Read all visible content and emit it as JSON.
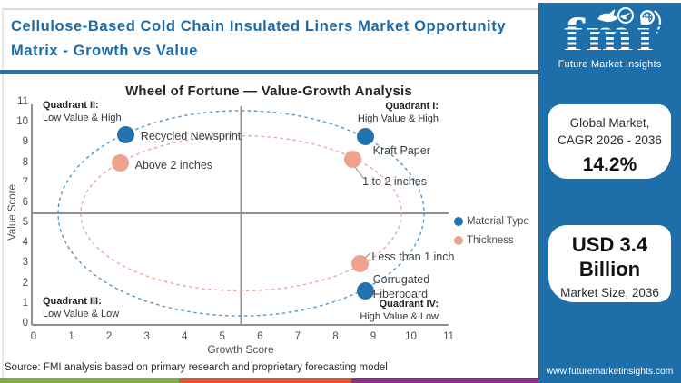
{
  "header": {
    "title": "Cellulose-Based Cold Chain Insulated Liners Market Opportunity Matrix - Growth vs Value"
  },
  "brand": {
    "logo_text": "fmi",
    "logo_tagline": "Future Market Insights",
    "website": "www.futuremarketinsights.com",
    "panel_color": "#1e6fa9"
  },
  "stats": {
    "cagr_box": {
      "line1": "Global Market,",
      "line2": "CAGR 2026 - 2036",
      "value": "14.2%"
    },
    "size_box": {
      "line1": "USD 3.4",
      "line2": "Billion",
      "caption": "Market Size, 2036"
    }
  },
  "chart_data": {
    "type": "scatter",
    "title": "Wheel of Fortune — Value-Growth Analysis",
    "xlabel": "Growth Score",
    "ylabel": "Value Score",
    "xlim": [
      0,
      11
    ],
    "ylim": [
      0,
      11
    ],
    "xticks": [
      0,
      1,
      2,
      3,
      4,
      5,
      6,
      7,
      8,
      9,
      10,
      11
    ],
    "yticks": [
      0,
      1,
      2,
      3,
      4,
      5,
      6,
      7,
      8,
      9,
      10,
      11
    ],
    "quadrant_divider": {
      "x": 5.5,
      "y": 5.5
    },
    "quadrants": [
      {
        "name": "Quadrant I:",
        "desc": "High Value & High",
        "position": "top-right"
      },
      {
        "name": "Quadrant II:",
        "desc": "Low Value & High",
        "position": "top-left"
      },
      {
        "name": "Quadrant III:",
        "desc": "Low Value & Low",
        "position": "bottom-left"
      },
      {
        "name": "Quadrant IV:",
        "desc": "High Value & Low",
        "position": "bottom-right"
      }
    ],
    "series": [
      {
        "name": "Material Type",
        "color": "#2273ae",
        "points": [
          {
            "label": "Recycled Newsprint",
            "x": 2.45,
            "y": 9.4
          },
          {
            "label": "Kraft Paper",
            "x": 8.8,
            "y": 9.3
          },
          {
            "label": "Corrugated Fiberboard",
            "x": 8.8,
            "y": 1.65
          }
        ]
      },
      {
        "name": "Thickness",
        "color": "#eda28b",
        "points": [
          {
            "label": "Above 2 inches",
            "x": 2.3,
            "y": 8.0
          },
          {
            "label": "1 to 2 inches",
            "x": 8.45,
            "y": 8.2
          },
          {
            "label": "Less than 1 inch",
            "x": 8.65,
            "y": 3.0
          }
        ]
      }
    ],
    "rings": [
      {
        "series": "Material Type",
        "cx": 5.5,
        "cy": 5.5,
        "rx": 4.85,
        "ry": 5.1,
        "color": "#4f93c6"
      },
      {
        "series": "Thickness",
        "cx": 5.5,
        "cy": 5.5,
        "rx": 4.25,
        "ry": 3.85,
        "color": "#eaa694"
      }
    ],
    "legend": [
      "Material Type",
      "Thickness"
    ],
    "grid": false
  },
  "footer": {
    "source": "Source: FMI analysis based on primary research and proprietary forecasting model"
  },
  "stripe_colors": [
    "#7dae3e",
    "#e2582c",
    "#8c2e8e"
  ]
}
